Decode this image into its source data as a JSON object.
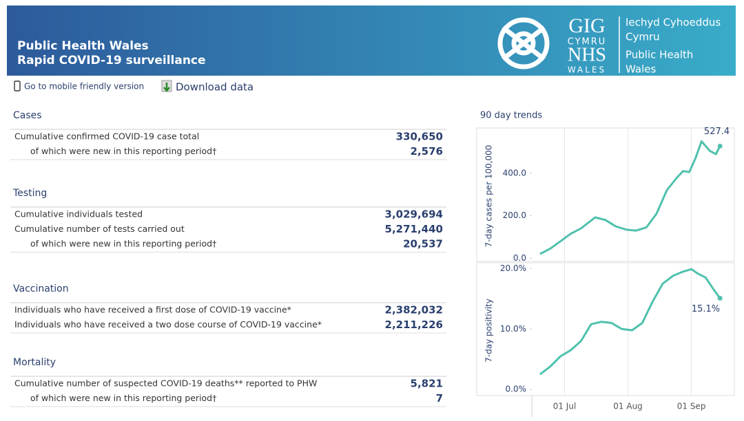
{
  "header": {
    "title_line1": "Public Health Wales",
    "title_line2": "Rapid COVID-19 surveillance",
    "logo": {
      "gig": "GIG",
      "cymru": "CYMRU",
      "nhs": "NHS",
      "wales": "WALES",
      "welsh_line1": "Iechyd Cyhoeddus",
      "welsh_line2": "Cymru",
      "english_line1": "Public Health",
      "english_line2": "Wales"
    }
  },
  "links": {
    "mobile": "Go to mobile friendly version",
    "download": "Download data"
  },
  "sections": [
    {
      "title": "Cases",
      "rows": [
        {
          "label": "Cumulative confirmed COVID-19 case total",
          "value": "330,650",
          "indent": false
        },
        {
          "label": "of which were new in this reporting period†",
          "value": "2,576",
          "indent": true
        }
      ]
    },
    {
      "title": "Testing",
      "rows": [
        {
          "label": "Cumulative individuals tested",
          "value": "3,029,694",
          "indent": false
        },
        {
          "label": "Cumulative number of tests carried out",
          "value": "5,271,440",
          "indent": false
        },
        {
          "label": "of which were new in this reporting period†",
          "value": "20,537",
          "indent": true
        }
      ]
    },
    {
      "title": "Vaccination",
      "rows": [
        {
          "label": "Individuals who have received a first dose of COVID-19 vaccine*",
          "value": "2,382,032",
          "indent": false
        },
        {
          "label": "Individuals who have received a two dose course of COVID-19 vaccine*",
          "value": "2,211,226",
          "indent": false
        }
      ]
    },
    {
      "title": "Mortality",
      "rows": [
        {
          "label": "Cumulative number of suspected COVID-19 deaths** reported to PHW",
          "value": "5,821",
          "indent": false
        },
        {
          "label": "of which were new in this reporting period†",
          "value": "7",
          "indent": true
        }
      ]
    }
  ],
  "trends_title": "90 day trends",
  "chart_data": [
    {
      "type": "line",
      "y_label": "7-day cases per 100,000",
      "color": "#4fc1ad",
      "x": [
        "19 Jun",
        "24 Jun",
        "29 Jun",
        "04 Jul",
        "09 Jul",
        "16 Jul",
        "21 Jul",
        "26 Jul",
        "31 Jul",
        "05 Aug",
        "10 Aug",
        "15 Aug",
        "20 Aug",
        "25 Aug",
        "28 Aug",
        "31 Aug",
        "03 Sep",
        "06 Sep",
        "10 Sep",
        "13 Sep",
        "15 Sep"
      ],
      "values": [
        20,
        45,
        80,
        115,
        140,
        192,
        180,
        150,
        135,
        130,
        145,
        210,
        320,
        380,
        410,
        405,
        470,
        550,
        505,
        490,
        527.4
      ],
      "value_labels": [
        null,
        null,
        null,
        null,
        null,
        null,
        null,
        null,
        null,
        null,
        null,
        null,
        null,
        null,
        null,
        null,
        null,
        null,
        null,
        null,
        "527.4"
      ],
      "xlim": [
        "15 Jun",
        "20 Sep"
      ],
      "xticks": [
        "01 Jul",
        "01 Aug",
        "01 Sep"
      ],
      "ylim": [
        -15,
        600
      ],
      "yticks": [
        {
          "value": 0,
          "label": "0.0"
        },
        {
          "value": 200,
          "label": "200.0"
        },
        {
          "value": 400,
          "label": "400.0"
        }
      ],
      "xgrid": true
    },
    {
      "type": "line",
      "y_label": "7-day positivity",
      "color": "#4fc1ad",
      "x": [
        "19 Jun",
        "24 Jun",
        "29 Jun",
        "04 Jul",
        "09 Jul",
        "14 Jul",
        "19 Jul",
        "24 Jul",
        "29 Jul",
        "03 Aug",
        "08 Aug",
        "13 Aug",
        "18 Aug",
        "23 Aug",
        "28 Aug",
        "01 Sep",
        "04 Sep",
        "08 Sep",
        "12 Sep",
        "15 Sep"
      ],
      "values": [
        2.5,
        3.8,
        5.5,
        6.5,
        8,
        10.8,
        11.2,
        11,
        10,
        9.8,
        11,
        14.5,
        17.5,
        18.8,
        19.5,
        19.9,
        19.2,
        18.5,
        16.5,
        15.1
      ],
      "value_labels": [
        null,
        null,
        null,
        null,
        null,
        null,
        null,
        null,
        null,
        null,
        null,
        null,
        null,
        null,
        null,
        null,
        null,
        null,
        null,
        "15.1%"
      ],
      "xlim": [
        "15 Jun",
        "20 Sep"
      ],
      "xticks": [
        "01 Jul",
        "01 Aug",
        "01 Sep"
      ],
      "ylim": [
        -1,
        20.5
      ],
      "yticks": [
        {
          "value": 0,
          "label": "0.0%"
        },
        {
          "value": 10,
          "label": "10.0%"
        },
        {
          "value": 20,
          "label": "20.0%"
        }
      ],
      "xgrid": true
    }
  ]
}
